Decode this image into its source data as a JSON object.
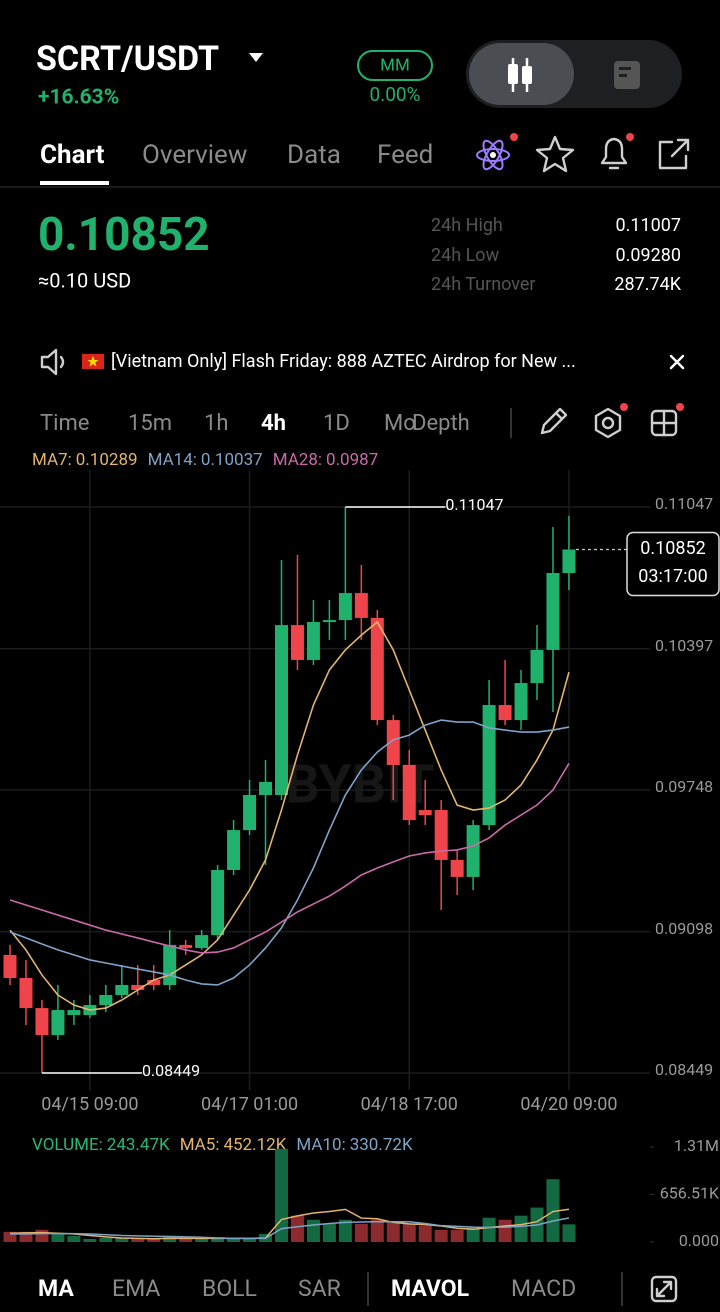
{
  "header": {
    "pair": "SCRT/USDT",
    "change": "+16.63%",
    "mm_label": "MM",
    "mm_value": "0.00%"
  },
  "tabs": [
    "Chart",
    "Overview",
    "Data",
    "Feed"
  ],
  "price": {
    "last": "0.10852",
    "usd": "≈0.10 USD"
  },
  "stats": [
    {
      "label": "24h High",
      "value": "0.11007"
    },
    {
      "label": "24h Low",
      "value": "0.09280"
    },
    {
      "label": "24h Turnover",
      "value": "287.74K"
    }
  ],
  "banner": {
    "text": "[Vietnam Only] Flash Friday: 888 AZTEC Airdrop for New ..."
  },
  "intervals": [
    "Time",
    "15m",
    "1h",
    "4h",
    "1D",
    "Mo",
    "Depth"
  ],
  "watermark": "BYBIT",
  "bottom_tabs": [
    "MA",
    "EMA",
    "BOLL",
    "SAR",
    "MAVOL",
    "MACD"
  ],
  "chart_data": {
    "type": "candlestick",
    "categories": [
      null,
      null,
      null,
      null,
      null,
      "04/15 09:00",
      null,
      null,
      null,
      null,
      null,
      null,
      null,
      null,
      null,
      "04/17 01:00",
      null,
      null,
      null,
      null,
      null,
      null,
      null,
      null,
      null,
      "04/18 17:00",
      null,
      null,
      null,
      null,
      null,
      null,
      null,
      null,
      null,
      "04/20 09:00"
    ],
    "open": [
      0.08991,
      0.08885,
      0.08747,
      0.08623,
      0.08715,
      0.08715,
      0.08761,
      0.08807,
      0.08853,
      0.08876,
      0.08853,
      0.09037,
      0.09023,
      0.09082,
      0.09381,
      0.09564,
      0.09725,
      0.09725,
      0.10505,
      0.10345,
      0.10519,
      0.10528,
      0.10652,
      0.10538,
      0.10069,
      0.09863,
      0.09656,
      0.09656,
      0.09427,
      0.09349,
      0.09587,
      0.10138,
      0.10069,
      0.10239,
      0.10391,
      0.10744
    ],
    "high": [
      0.09037,
      0.08968,
      0.08784,
      0.08853,
      0.08784,
      0.08807,
      0.08853,
      0.08945,
      0.08945,
      0.08945,
      0.09105,
      0.0906,
      0.09105,
      0.09404,
      0.0961,
      0.09794,
      0.09886,
      0.10804,
      0.10827,
      0.1062,
      0.1062,
      0.11047,
      0.10781,
      0.10574,
      0.10092,
      0.09932,
      0.09794,
      0.09702,
      0.09473,
      0.0961,
      0.10253,
      0.10345,
      0.10299,
      0.10505,
      0.10955,
      0.11007
    ],
    "low": [
      0.08853,
      0.08669,
      0.08449,
      0.08601,
      0.08669,
      0.08702,
      0.08729,
      0.08793,
      0.08807,
      0.0883,
      0.0883,
      0.08991,
      0.09014,
      0.0906,
      0.09358,
      0.09541,
      0.09404,
      0.09702,
      0.10299,
      0.10322,
      0.10437,
      0.10437,
      0.10437,
      0.10046,
      0.09702,
      0.09587,
      0.09587,
      0.09197,
      0.09266,
      0.09289,
      0.09564,
      0.10046,
      0.10023,
      0.10161,
      0.10106,
      0.10666
    ],
    "close": [
      0.08885,
      0.08747,
      0.08623,
      0.08738,
      0.08738,
      0.08761,
      0.08807,
      0.08853,
      0.0883,
      0.08853,
      0.09037,
      0.09023,
      0.09082,
      0.09381,
      0.09564,
      0.09725,
      0.09785,
      0.10505,
      0.10345,
      0.10519,
      0.10528,
      0.10652,
      0.10538,
      0.10069,
      0.09863,
      0.0961,
      0.09633,
      0.09427,
      0.09349,
      0.09587,
      0.10138,
      0.10069,
      0.10239,
      0.10391,
      0.10744,
      0.10852
    ],
    "up_color": "#20b26c",
    "down_color": "#ef454a",
    "ylim": [
      0.08449,
      0.11047
    ],
    "yticks": [
      0.11047,
      0.10397,
      0.09748,
      0.09098,
      0.08449
    ],
    "grid": true,
    "countdown": "03:17:00",
    "indicators": [
      {
        "label": "MA7:",
        "color": "#e2b46e",
        "values": [
          0.09105,
          0.09014,
          0.08899,
          0.08807,
          0.08761,
          0.08738,
          0.08747,
          0.08784,
          0.0883,
          0.08876,
          0.08899,
          0.08945,
          0.08991,
          0.0906,
          0.09174,
          0.09289,
          0.09427,
          0.09656,
          0.09909,
          0.10138,
          0.10299,
          0.10391,
          0.10459,
          0.10519,
          0.10391,
          0.10207,
          0.10023,
          0.0984,
          0.09679,
          0.09656,
          0.09665,
          0.09702,
          0.09771,
          0.09886,
          0.10023,
          0.10289
        ]
      },
      {
        "label": "MA14:",
        "color": "#7fa3c6",
        "values": [
          0.09096,
          0.09069,
          0.09041,
          0.09014,
          0.08991,
          0.08968,
          0.08954,
          0.0894,
          0.08926,
          0.08913,
          0.08899,
          0.08876,
          0.08858,
          0.08853,
          0.08885,
          0.08945,
          0.09023,
          0.09115,
          0.09243,
          0.0939,
          0.09564,
          0.09725,
          0.0984,
          0.09922,
          0.09978,
          0.1,
          0.10046,
          0.10069,
          0.1006,
          0.1006,
          0.10033,
          0.10023,
          0.10014,
          0.10014,
          0.10023,
          0.10037
        ]
      },
      {
        "label": "MA28:",
        "color": "#c86aa8",
        "values": [
          0.09243,
          0.0922,
          0.09197,
          0.09174,
          0.09151,
          0.09128,
          0.09105,
          0.09087,
          0.09069,
          0.0905,
          0.09032,
          0.09014,
          0.09,
          0.09004,
          0.09023,
          0.0906,
          0.09096,
          0.09142,
          0.09188,
          0.09225,
          0.09261,
          0.09307,
          0.09358,
          0.0939,
          0.09418,
          0.09445,
          0.09459,
          0.09468,
          0.09473,
          0.09491,
          0.09528,
          0.09587,
          0.09633,
          0.09679,
          0.09748,
          0.0987
        ]
      }
    ],
    "volume": {
      "label": "VOLUME:",
      "value": 243470,
      "value_label": "243.47K",
      "color": "#2cb673",
      "values": [
        140000,
        140000,
        168000,
        112000,
        84000,
        42000,
        56000,
        56000,
        56000,
        42000,
        84000,
        56000,
        56000,
        70000,
        56000,
        56000,
        112000,
        1285000,
        363000,
        307000,
        251000,
        307000,
        251000,
        307000,
        279000,
        251000,
        224000,
        168000,
        168000,
        196000,
        335000,
        307000,
        363000,
        475000,
        866000,
        243470
      ],
      "ylim": [
        0,
        1310000
      ],
      "yticks": [
        {
          "value": 1310000,
          "label": "1.31M"
        },
        {
          "value": 656510,
          "label": "656.51K"
        },
        {
          "value": 0,
          "label": "0.000"
        }
      ],
      "lines": [
        {
          "label": "MA5:",
          "value": 452120,
          "value_label": "452.12K",
          "color": "#e2b46e",
          "values": [
            120000,
            125000,
            130000,
            120000,
            110000,
            90000,
            70000,
            55000,
            50000,
            45000,
            50000,
            50000,
            50000,
            50000,
            50000,
            50000,
            55000,
            310000,
            360000,
            400000,
            420000,
            450000,
            330000,
            320000,
            270000,
            250000,
            240000,
            220000,
            190000,
            175000,
            200000,
            220000,
            240000,
            280000,
            420000,
            452120
          ]
        },
        {
          "label": "MA10:",
          "value": 330720,
          "value_label": "330.72K",
          "color": "#7fa3c6",
          "values": [
            110000,
            110000,
            115000,
            115000,
            115000,
            110000,
            100000,
            90000,
            85000,
            80000,
            75000,
            70000,
            65000,
            55000,
            50000,
            50000,
            50000,
            185000,
            210000,
            235000,
            255000,
            270000,
            275000,
            280000,
            280000,
            280000,
            255000,
            225000,
            215000,
            205000,
            200000,
            205000,
            215000,
            235000,
            290000,
            330720
          ]
        }
      ]
    }
  }
}
